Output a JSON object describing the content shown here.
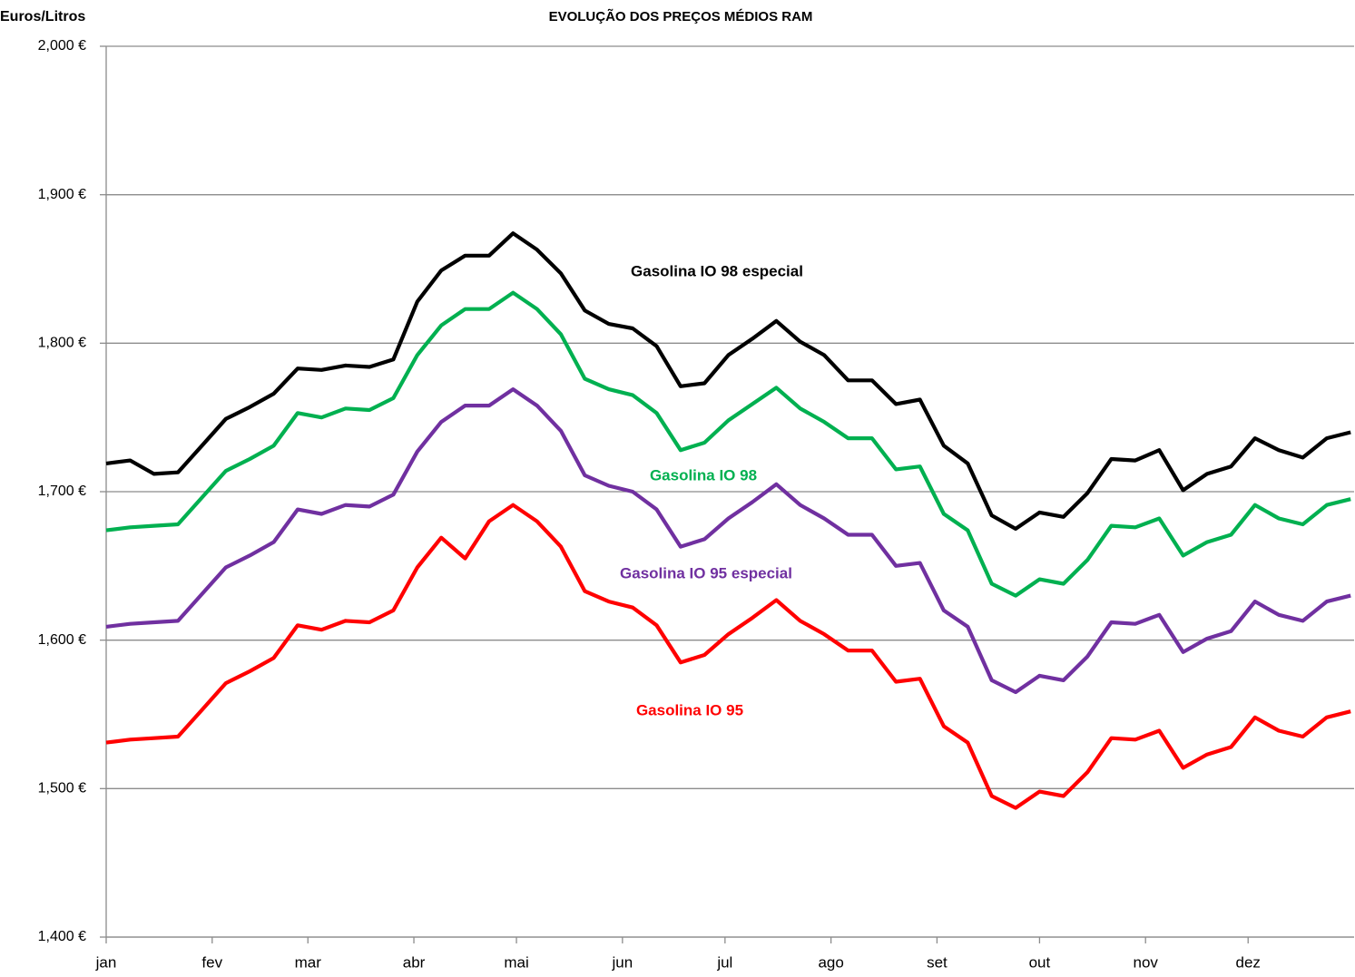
{
  "chart_data": {
    "type": "line",
    "title": "EVOLUÇÃO DOS PREÇOS MÉDIOS RAM",
    "y_label": "Euros/Litros",
    "x": [
      0,
      7,
      14,
      21,
      28,
      35,
      42,
      49,
      56,
      63,
      70,
      77,
      84,
      91,
      98,
      105,
      112,
      119,
      126,
      133,
      140,
      147,
      154,
      161,
      168,
      175,
      182,
      189,
      196,
      203,
      210,
      217,
      224,
      231,
      238,
      245,
      252,
      259,
      266,
      273,
      280,
      287,
      294,
      301,
      308,
      315,
      322,
      329,
      336,
      343,
      350,
      357,
      364
    ],
    "xlim": [
      0,
      365
    ],
    "xticks": [
      {
        "value": 0,
        "label": "jan"
      },
      {
        "value": 31,
        "label": "fev"
      },
      {
        "value": 59,
        "label": "mar"
      },
      {
        "value": 90,
        "label": "abr"
      },
      {
        "value": 120,
        "label": "mai"
      },
      {
        "value": 151,
        "label": "jun"
      },
      {
        "value": 181,
        "label": "jul"
      },
      {
        "value": 212,
        "label": "ago"
      },
      {
        "value": 243,
        "label": "set"
      },
      {
        "value": 273,
        "label": "out"
      },
      {
        "value": 304,
        "label": "nov"
      },
      {
        "value": 334,
        "label": "dez"
      }
    ],
    "ylim": [
      1.4,
      2.0
    ],
    "yticks": [
      {
        "value": 1.4,
        "label": "1,400 €"
      },
      {
        "value": 1.5,
        "label": "1,500 €"
      },
      {
        "value": 1.6,
        "label": "1,600 €"
      },
      {
        "value": 1.7,
        "label": "1,700 €"
      },
      {
        "value": 1.8,
        "label": "1,800 €"
      },
      {
        "value": 1.9,
        "label": "1,900 €"
      },
      {
        "value": 2.0,
        "label": "2,000 €"
      }
    ],
    "grid": true,
    "series": [
      {
        "name": "Gasolina IO 98 especial",
        "color": "#000000",
        "values": [
          1.719,
          1.721,
          1.712,
          1.713,
          1.731,
          1.749,
          1.757,
          1.766,
          1.783,
          1.782,
          1.785,
          1.784,
          1.789,
          1.828,
          1.849,
          1.859,
          1.859,
          1.874,
          1.863,
          1.847,
          1.822,
          1.813,
          1.81,
          1.798,
          1.771,
          1.773,
          1.792,
          1.803,
          1.815,
          1.801,
          1.792,
          1.775,
          1.775,
          1.759,
          1.762,
          1.731,
          1.719,
          1.684,
          1.675,
          1.686,
          1.683,
          1.699,
          1.722,
          1.721,
          1.728,
          1.701,
          1.712,
          1.717,
          1.736,
          1.728,
          1.723,
          1.736,
          1.74
        ]
      },
      {
        "name": "Gasolina IO 98",
        "color": "#00b050",
        "values": [
          1.674,
          1.676,
          1.677,
          1.678,
          1.696,
          1.714,
          1.722,
          1.731,
          1.753,
          1.75,
          1.756,
          1.755,
          1.763,
          1.792,
          1.812,
          1.823,
          1.823,
          1.834,
          1.823,
          1.806,
          1.776,
          1.769,
          1.765,
          1.753,
          1.728,
          1.733,
          1.748,
          1.759,
          1.77,
          1.756,
          1.747,
          1.736,
          1.736,
          1.715,
          1.717,
          1.685,
          1.674,
          1.638,
          1.63,
          1.641,
          1.638,
          1.654,
          1.677,
          1.676,
          1.682,
          1.657,
          1.666,
          1.671,
          1.691,
          1.682,
          1.678,
          1.691,
          1.695
        ]
      },
      {
        "name": "Gasolina IO 95 especial",
        "color": "#7030a0",
        "values": [
          1.609,
          1.611,
          1.612,
          1.613,
          1.631,
          1.649,
          1.657,
          1.666,
          1.688,
          1.685,
          1.691,
          1.69,
          1.698,
          1.727,
          1.747,
          1.758,
          1.758,
          1.769,
          1.758,
          1.741,
          1.711,
          1.704,
          1.7,
          1.688,
          1.663,
          1.668,
          1.682,
          1.693,
          1.705,
          1.691,
          1.682,
          1.671,
          1.671,
          1.65,
          1.652,
          1.62,
          1.609,
          1.573,
          1.565,
          1.576,
          1.573,
          1.589,
          1.612,
          1.611,
          1.617,
          1.592,
          1.601,
          1.606,
          1.626,
          1.617,
          1.613,
          1.626,
          1.63
        ]
      },
      {
        "name": "Gasolina IO 95",
        "color": "#ff0000",
        "values": [
          1.531,
          1.533,
          1.534,
          1.535,
          1.553,
          1.571,
          1.579,
          1.588,
          1.61,
          1.607,
          1.613,
          1.612,
          1.62,
          1.649,
          1.669,
          1.655,
          1.68,
          1.691,
          1.68,
          1.663,
          1.633,
          1.626,
          1.622,
          1.61,
          1.585,
          1.59,
          1.604,
          1.615,
          1.627,
          1.613,
          1.604,
          1.593,
          1.593,
          1.572,
          1.574,
          1.542,
          1.531,
          1.495,
          1.487,
          1.498,
          1.495,
          1.511,
          1.534,
          1.533,
          1.539,
          1.514,
          1.523,
          1.528,
          1.548,
          1.539,
          1.535,
          1.548,
          1.552
        ]
      }
    ]
  }
}
